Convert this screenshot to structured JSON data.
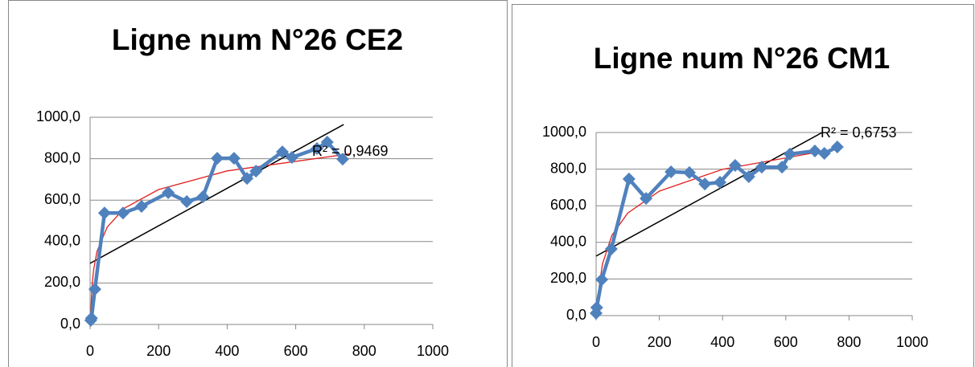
{
  "chart_data": [
    {
      "type": "scatter",
      "title": "Ligne num N°26 CE2",
      "annotation": "R² = 0,9469",
      "xlim": [
        0,
        1000
      ],
      "xticks": [
        0,
        200,
        400,
        600,
        800,
        1000
      ],
      "ylim": [
        0,
        1000
      ],
      "yticks": [
        {
          "value": 0,
          "label": "0,0"
        },
        {
          "value": 200,
          "label": "200,0"
        },
        {
          "value": 400,
          "label": "400,0"
        },
        {
          "value": 600,
          "label": "600,0"
        },
        {
          "value": 800,
          "label": "800,0"
        },
        {
          "value": 1000,
          "label": "1000,0"
        }
      ],
      "grid": true,
      "series": [
        {
          "color": "#4f81bd",
          "x": [
            2,
            4,
            14,
            42,
            96,
            150,
            228,
            282,
            329,
            371,
            420,
            458,
            484,
            561,
            589,
            662,
            692,
            737
          ],
          "values": [
            20,
            30,
            170,
            538,
            538,
            570,
            636,
            593,
            616,
            802,
            802,
            705,
            740,
            833,
            806,
            849,
            880,
            798
          ]
        }
      ],
      "trendlines": [
        {
          "type": "linear",
          "color": "#000000",
          "x": [
            0,
            740
          ],
          "values": [
            295,
            965
          ]
        },
        {
          "type": "log",
          "color": "#e02020",
          "x": [
            2,
            5,
            10,
            20,
            50,
            100,
            200,
            400,
            760
          ],
          "values": [
            52,
            171,
            261,
            352,
            470,
            561,
            651,
            741,
            824
          ]
        }
      ]
    },
    {
      "type": "scatter",
      "title": "Ligne num N°26 CM1",
      "annotation": "R² = 0,6753",
      "xlim": [
        0,
        1000
      ],
      "xticks": [
        0,
        200,
        400,
        600,
        800,
        1000
      ],
      "ylim": [
        0,
        1000
      ],
      "yticks": [
        {
          "value": 0,
          "label": "0,0"
        },
        {
          "value": 200,
          "label": "200,0"
        },
        {
          "value": 400,
          "label": "400,0"
        },
        {
          "value": 600,
          "label": "600,0"
        },
        {
          "value": 800,
          "label": "800,0"
        },
        {
          "value": 1000,
          "label": "1000,0"
        }
      ],
      "grid": true,
      "series": [
        {
          "color": "#4f81bd",
          "x": [
            0,
            2,
            18,
            48,
            104,
            158,
            237,
            295,
            344,
            392,
            440,
            483,
            524,
            588,
            613,
            692,
            722,
            763
          ],
          "values": [
            13,
            44,
            197,
            364,
            746,
            640,
            785,
            781,
            719,
            728,
            820,
            759,
            811,
            811,
            882,
            899,
            886,
            921
          ]
        }
      ],
      "trendlines": [
        {
          "type": "linear",
          "color": "#000000",
          "x": [
            0,
            715
          ],
          "values": [
            325,
            1000
          ]
        },
        {
          "type": "log",
          "color": "#e02020",
          "x": [
            5,
            10,
            20,
            50,
            100,
            200,
            400,
            760
          ],
          "values": [
            41,
            161,
            281,
            439,
            560,
            680,
            799,
            911
          ]
        }
      ]
    }
  ]
}
